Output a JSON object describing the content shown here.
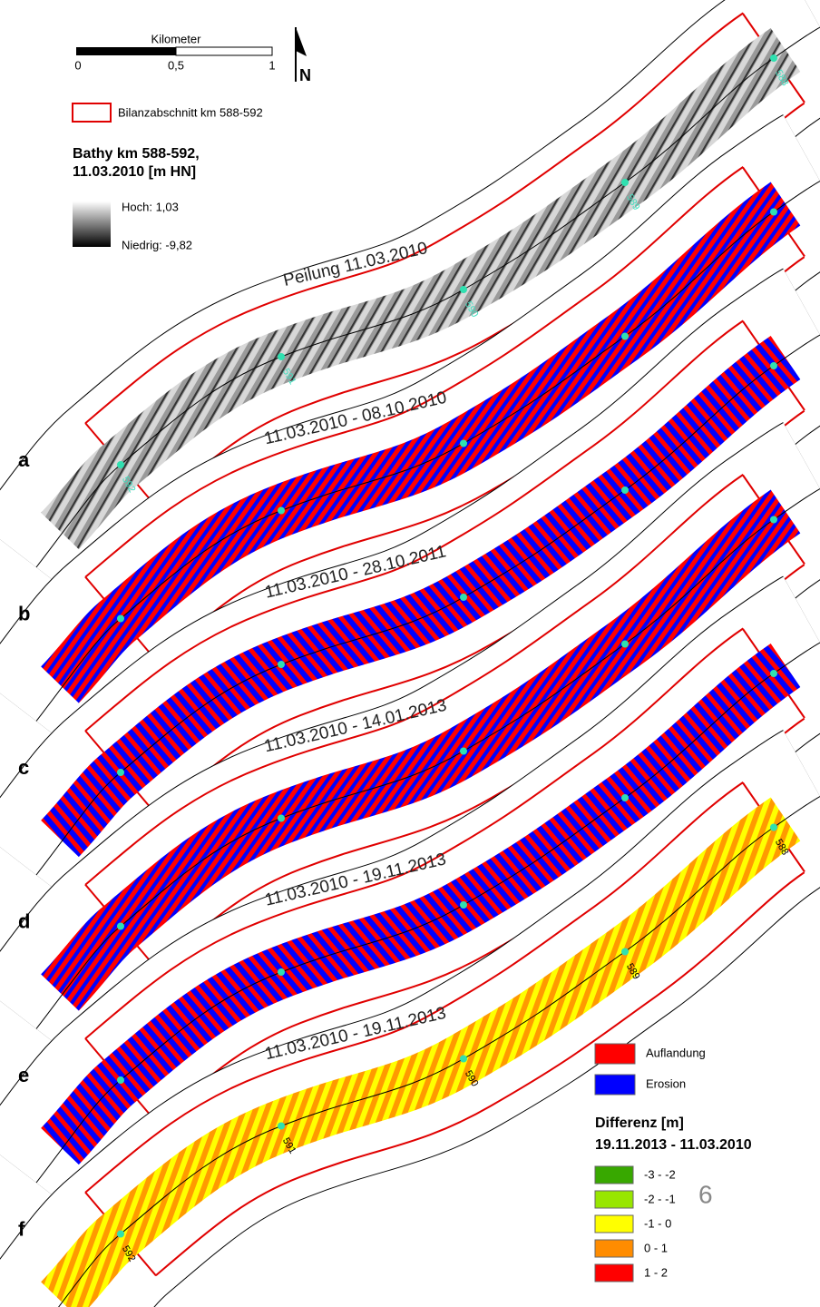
{
  "scale_bar": {
    "title": "Kilometer",
    "labels": [
      "0",
      "0,5",
      "1"
    ]
  },
  "north_arrow": "N",
  "boundary_legend": "Bilanzabschnitt km 588-592",
  "bathy_legend": {
    "title_lines": [
      "Bathy km 588-592,",
      "11.03.2010 [m HN]"
    ],
    "high": "Hoch: 1,03",
    "low": "Niedrig: -9,82"
  },
  "panels": [
    {
      "label": "a",
      "title": "Peilung 11.03.2010",
      "km_labels": [
        "588",
        "589",
        "590",
        "591",
        "592"
      ]
    },
    {
      "label": "b",
      "title": "11.03.2010 - 08.10.2010"
    },
    {
      "label": "c",
      "title": "11.03.2010 - 28.10.2011"
    },
    {
      "label": "d",
      "title": "11.03.2010 - 14.01.2013"
    },
    {
      "label": "e",
      "title": "11.03.2010 - 19.11.2013"
    },
    {
      "label": "f",
      "title": "11.03.2010 - 19.11.2013",
      "km_labels": [
        "588",
        "589",
        "590",
        "591",
        "592"
      ]
    }
  ],
  "change_legend": [
    {
      "label": "Auflandung",
      "color": "#ff0000"
    },
    {
      "label": "Erosion",
      "color": "#0000ff"
    }
  ],
  "difference_legend": {
    "title_lines": [
      "Differenz [m]",
      "19.11.2013 - 11.03.2010"
    ],
    "classes": [
      {
        "label": "-3 - -2",
        "color": "#38a800"
      },
      {
        "label": "-2 - -1",
        "color": "#98e600"
      },
      {
        "label": "-1 - 0",
        "color": "#ffff00"
      },
      {
        "label": "0 - 1",
        "color": "#ff8c00"
      },
      {
        "label": "1 - 2",
        "color": "#ff0000"
      }
    ]
  },
  "page_number": "6"
}
